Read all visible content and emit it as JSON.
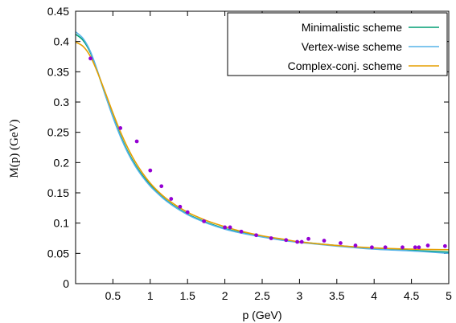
{
  "chart_data": {
    "type": "line",
    "xlabel": "p (GeV)",
    "ylabel": "M(p) (GeV)",
    "xlim": [
      0,
      5
    ],
    "ylim": [
      0,
      0.45
    ],
    "xticks": [
      {
        "v": 0.5,
        "label": "0.5"
      },
      {
        "v": 1,
        "label": "1"
      },
      {
        "v": 1.5,
        "label": "1.5"
      },
      {
        "v": 2,
        "label": "2"
      },
      {
        "v": 2.5,
        "label": "2.5"
      },
      {
        "v": 3,
        "label": "3"
      },
      {
        "v": 3.5,
        "label": "3.5"
      },
      {
        "v": 4,
        "label": "4"
      },
      {
        "v": 4.5,
        "label": "4.5"
      },
      {
        "v": 5,
        "label": "5"
      }
    ],
    "yticks": [
      {
        "v": 0,
        "label": "0"
      },
      {
        "v": 0.05,
        "label": "0.05"
      },
      {
        "v": 0.1,
        "label": "0.1"
      },
      {
        "v": 0.15,
        "label": "0.15"
      },
      {
        "v": 0.2,
        "label": "0.2"
      },
      {
        "v": 0.25,
        "label": "0.25"
      },
      {
        "v": 0.3,
        "label": "0.3"
      },
      {
        "v": 0.35,
        "label": "0.35"
      },
      {
        "v": 0.4,
        "label": "0.4"
      },
      {
        "v": 0.45,
        "label": "0.45"
      }
    ],
    "grid": false,
    "legend_position": "top-right",
    "series": [
      {
        "name": "Minimalistic scheme",
        "color": "#009e73",
        "x": [
          0,
          0.1,
          0.2,
          0.3,
          0.4,
          0.5,
          0.6,
          0.7,
          0.8,
          0.9,
          1.0,
          1.1,
          1.2,
          1.3,
          1.4,
          1.5,
          1.6,
          1.8,
          2.0,
          2.2,
          2.5,
          2.8,
          3.0,
          3.5,
          4.0,
          4.5,
          5.0
        ],
        "y": [
          0.412,
          0.402,
          0.381,
          0.348,
          0.311,
          0.276,
          0.245,
          0.218,
          0.196,
          0.178,
          0.163,
          0.15,
          0.139,
          0.13,
          0.122,
          0.115,
          0.109,
          0.099,
          0.091,
          0.085,
          0.078,
          0.072,
          0.069,
          0.063,
          0.058,
          0.055,
          0.052
        ]
      },
      {
        "name": "Vertex-wise scheme",
        "color": "#56b4e9",
        "x": [
          0,
          0.1,
          0.2,
          0.3,
          0.4,
          0.5,
          0.6,
          0.7,
          0.8,
          0.9,
          1.0,
          1.1,
          1.2,
          1.3,
          1.4,
          1.5,
          1.6,
          1.8,
          2.0,
          2.2,
          2.5,
          2.8,
          3.0,
          3.5,
          4.0,
          4.5,
          5.0
        ],
        "y": [
          0.416,
          0.405,
          0.383,
          0.349,
          0.311,
          0.275,
          0.243,
          0.216,
          0.194,
          0.176,
          0.161,
          0.149,
          0.138,
          0.129,
          0.121,
          0.114,
          0.108,
          0.098,
          0.09,
          0.084,
          0.077,
          0.071,
          0.068,
          0.062,
          0.057,
          0.054,
          0.05
        ]
      },
      {
        "name": "Complex-conj. scheme",
        "color": "#e69f00",
        "x": [
          0,
          0.1,
          0.2,
          0.3,
          0.4,
          0.5,
          0.6,
          0.7,
          0.8,
          0.9,
          1.0,
          1.1,
          1.2,
          1.3,
          1.4,
          1.5,
          1.6,
          1.8,
          2.0,
          2.2,
          2.5,
          2.8,
          3.0,
          3.5,
          4.0,
          4.5,
          5.0
        ],
        "y": [
          0.399,
          0.392,
          0.375,
          0.347,
          0.315,
          0.282,
          0.251,
          0.224,
          0.201,
          0.182,
          0.166,
          0.153,
          0.142,
          0.133,
          0.125,
          0.118,
          0.112,
          0.102,
          0.094,
          0.087,
          0.079,
          0.073,
          0.069,
          0.063,
          0.059,
          0.057,
          0.056
        ]
      }
    ],
    "scatter": {
      "color": "#9400d3",
      "x": [
        0.2,
        0.6,
        0.82,
        1.0,
        1.15,
        1.28,
        1.4,
        1.5,
        1.72,
        2.0,
        2.07,
        2.22,
        2.42,
        2.62,
        2.82,
        2.97,
        3.03,
        3.12,
        3.33,
        3.55,
        3.75,
        3.97,
        4.15,
        4.38,
        4.55,
        4.6,
        4.72,
        4.95
      ],
      "y": [
        0.372,
        0.257,
        0.235,
        0.187,
        0.161,
        0.14,
        0.127,
        0.118,
        0.103,
        0.093,
        0.093,
        0.086,
        0.08,
        0.075,
        0.072,
        0.069,
        0.069,
        0.074,
        0.071,
        0.067,
        0.063,
        0.06,
        0.06,
        0.06,
        0.06,
        0.06,
        0.063,
        0.062
      ]
    }
  }
}
